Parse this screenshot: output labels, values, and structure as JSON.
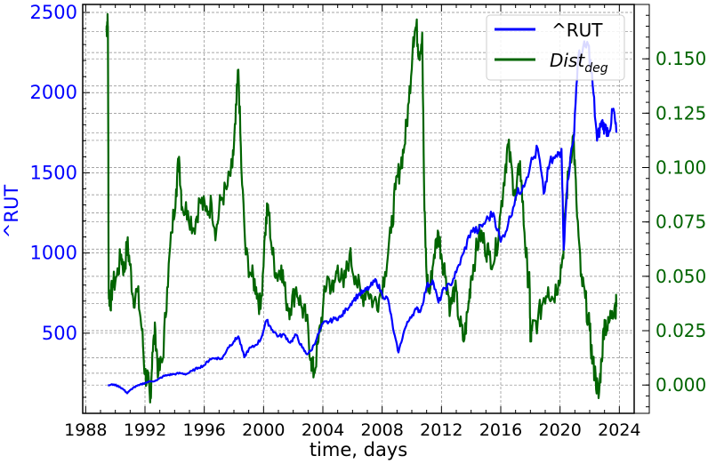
{
  "chart_data": {
    "type": "line",
    "xlabel": "time, days",
    "ylabel_left": "^RUT",
    "ylabel_right": "",
    "x_ticks": [
      1988,
      1992,
      1996,
      2000,
      2004,
      2008,
      2012,
      2016,
      2020,
      2024
    ],
    "y_left_ticks": [
      500,
      1000,
      1500,
      2000,
      2500
    ],
    "y_right_ticks": [
      "0.000",
      "0.025",
      "0.050",
      "0.075",
      "0.100",
      "0.125",
      "0.150"
    ],
    "xlim": [
      1987.8,
      2025.0
    ],
    "ylim_left": [
      0,
      2550
    ],
    "ylim_right": [
      -0.013,
      0.175
    ],
    "grid": true,
    "legend_position": "top-right",
    "colors": {
      "left_axis": "#0000ff",
      "right_axis": "#006400",
      "grid": "#888888"
    },
    "series": [
      {
        "name": "^RUT",
        "axis": "left",
        "color": "#0000ff",
        "points": [
          [
            1989.5,
            175
          ],
          [
            1989.9,
            180
          ],
          [
            1990.3,
            165
          ],
          [
            1990.6,
            145
          ],
          [
            1990.8,
            125
          ],
          [
            1991.2,
            160
          ],
          [
            1991.6,
            175
          ],
          [
            1992.0,
            190
          ],
          [
            1992.4,
            200
          ],
          [
            1992.8,
            205
          ],
          [
            1993.2,
            230
          ],
          [
            1993.6,
            240
          ],
          [
            1994.0,
            245
          ],
          [
            1994.4,
            250
          ],
          [
            1994.8,
            245
          ],
          [
            1995.2,
            265
          ],
          [
            1995.6,
            285
          ],
          [
            1996.0,
            300
          ],
          [
            1996.4,
            340
          ],
          [
            1996.8,
            345
          ],
          [
            1997.2,
            340
          ],
          [
            1997.6,
            410
          ],
          [
            1998.0,
            450
          ],
          [
            1998.3,
            480
          ],
          [
            1998.7,
            350
          ],
          [
            1999.0,
            400
          ],
          [
            1999.4,
            420
          ],
          [
            1999.8,
            460
          ],
          [
            2000.2,
            580
          ],
          [
            2000.6,
            520
          ],
          [
            2001.0,
            480
          ],
          [
            2001.4,
            490
          ],
          [
            2001.8,
            440
          ],
          [
            2002.2,
            490
          ],
          [
            2002.6,
            410
          ],
          [
            2002.9,
            370
          ],
          [
            2003.2,
            390
          ],
          [
            2003.6,
            470
          ],
          [
            2004.0,
            560
          ],
          [
            2004.4,
            570
          ],
          [
            2004.8,
            590
          ],
          [
            2005.2,
            600
          ],
          [
            2005.6,
            650
          ],
          [
            2006.0,
            700
          ],
          [
            2006.4,
            740
          ],
          [
            2006.8,
            760
          ],
          [
            2007.2,
            790
          ],
          [
            2007.6,
            830
          ],
          [
            2008.0,
            740
          ],
          [
            2008.4,
            710
          ],
          [
            2008.8,
            500
          ],
          [
            2009.1,
            380
          ],
          [
            2009.5,
            520
          ],
          [
            2009.9,
            600
          ],
          [
            2010.3,
            650
          ],
          [
            2010.6,
            640
          ],
          [
            2011.0,
            790
          ],
          [
            2011.4,
            830
          ],
          [
            2011.8,
            690
          ],
          [
            2012.2,
            780
          ],
          [
            2012.6,
            800
          ],
          [
            2013.0,
            880
          ],
          [
            2013.5,
            1000
          ],
          [
            2014.0,
            1140
          ],
          [
            2014.5,
            1140
          ],
          [
            2015.0,
            1200
          ],
          [
            2015.5,
            1250
          ],
          [
            2016.0,
            1070
          ],
          [
            2016.5,
            1180
          ],
          [
            2017.0,
            1350
          ],
          [
            2017.5,
            1420
          ],
          [
            2018.0,
            1550
          ],
          [
            2018.5,
            1650
          ],
          [
            2018.9,
            1370
          ],
          [
            2019.3,
            1560
          ],
          [
            2019.8,
            1600
          ],
          [
            2020.1,
            1650
          ],
          [
            2020.25,
            1020
          ],
          [
            2020.5,
            1450
          ],
          [
            2020.9,
            1700
          ],
          [
            2021.2,
            2200
          ],
          [
            2021.5,
            2250
          ],
          [
            2021.9,
            2300
          ],
          [
            2022.2,
            2050
          ],
          [
            2022.5,
            1700
          ],
          [
            2022.8,
            1820
          ],
          [
            2023.0,
            1780
          ],
          [
            2023.3,
            1760
          ],
          [
            2023.6,
            1900
          ],
          [
            2023.8,
            1750
          ]
        ]
      },
      {
        "name": "Dist_deg",
        "axis": "right",
        "color": "#006400",
        "points": [
          [
            1989.4,
            0.163
          ],
          [
            1989.45,
            0.167
          ],
          [
            1989.5,
            0.165
          ],
          [
            1989.55,
            0.044
          ],
          [
            1989.65,
            0.037
          ],
          [
            1989.8,
            0.045
          ],
          [
            1990.1,
            0.05
          ],
          [
            1990.4,
            0.06
          ],
          [
            1990.6,
            0.052
          ],
          [
            1990.8,
            0.065
          ],
          [
            1991.0,
            0.055
          ],
          [
            1991.2,
            0.04
          ],
          [
            1991.5,
            0.043
          ],
          [
            1991.8,
            0.025
          ],
          [
            1992.0,
            0.005
          ],
          [
            1992.2,
            0.002
          ],
          [
            1992.35,
            -0.008
          ],
          [
            1992.5,
            0.015
          ],
          [
            1992.7,
            0.025
          ],
          [
            1992.9,
            0.005
          ],
          [
            1993.2,
            0.012
          ],
          [
            1993.5,
            0.045
          ],
          [
            1993.8,
            0.07
          ],
          [
            1994.1,
            0.09
          ],
          [
            1994.3,
            0.105
          ],
          [
            1994.5,
            0.082
          ],
          [
            1994.9,
            0.08
          ],
          [
            1995.3,
            0.072
          ],
          [
            1995.7,
            0.085
          ],
          [
            1996.1,
            0.08
          ],
          [
            1996.5,
            0.083
          ],
          [
            1996.8,
            0.07
          ],
          [
            1997.1,
            0.085
          ],
          [
            1997.5,
            0.09
          ],
          [
            1997.9,
            0.1
          ],
          [
            1998.1,
            0.12
          ],
          [
            1998.3,
            0.145
          ],
          [
            1998.5,
            0.1
          ],
          [
            1998.8,
            0.06
          ],
          [
            1999.2,
            0.05
          ],
          [
            1999.5,
            0.045
          ],
          [
            1999.8,
            0.035
          ],
          [
            2000.1,
            0.07
          ],
          [
            2000.3,
            0.083
          ],
          [
            2000.6,
            0.06
          ],
          [
            2000.9,
            0.05
          ],
          [
            2001.2,
            0.055
          ],
          [
            2001.5,
            0.04
          ],
          [
            2001.8,
            0.035
          ],
          [
            2002.2,
            0.045
          ],
          [
            2002.6,
            0.035
          ],
          [
            2002.9,
            0.03
          ],
          [
            2003.2,
            0.012
          ],
          [
            2003.4,
            0.005
          ],
          [
            2003.7,
            0.02
          ],
          [
            2004.0,
            0.035
          ],
          [
            2004.3,
            0.05
          ],
          [
            2004.7,
            0.043
          ],
          [
            2005.0,
            0.055
          ],
          [
            2005.4,
            0.045
          ],
          [
            2005.8,
            0.06
          ],
          [
            2006.2,
            0.05
          ],
          [
            2006.6,
            0.04
          ],
          [
            2007.0,
            0.045
          ],
          [
            2007.4,
            0.038
          ],
          [
            2007.8,
            0.04
          ],
          [
            2008.2,
            0.052
          ],
          [
            2008.6,
            0.07
          ],
          [
            2008.9,
            0.09
          ],
          [
            2009.2,
            0.1
          ],
          [
            2009.5,
            0.11
          ],
          [
            2009.8,
            0.13
          ],
          [
            2010.1,
            0.16
          ],
          [
            2010.3,
            0.165
          ],
          [
            2010.5,
            0.152
          ],
          [
            2010.7,
            0.162
          ],
          [
            2010.85,
            0.08
          ],
          [
            2011.0,
            0.05
          ],
          [
            2011.2,
            0.042
          ],
          [
            2011.5,
            0.06
          ],
          [
            2011.8,
            0.07
          ],
          [
            2012.0,
            0.06
          ],
          [
            2012.3,
            0.05
          ],
          [
            2012.6,
            0.035
          ],
          [
            2012.9,
            0.045
          ],
          [
            2013.2,
            0.03
          ],
          [
            2013.5,
            0.02
          ],
          [
            2013.8,
            0.035
          ],
          [
            2014.0,
            0.05
          ],
          [
            2014.3,
            0.06
          ],
          [
            2014.6,
            0.07
          ],
          [
            2014.9,
            0.065
          ],
          [
            2015.2,
            0.06
          ],
          [
            2015.6,
            0.058
          ],
          [
            2016.0,
            0.08
          ],
          [
            2016.3,
            0.1
          ],
          [
            2016.5,
            0.11
          ],
          [
            2016.8,
            0.095
          ],
          [
            2017.0,
            0.085
          ],
          [
            2017.3,
            0.103
          ],
          [
            2017.6,
            0.07
          ],
          [
            2017.8,
            0.052
          ],
          [
            2017.95,
            0.045
          ],
          [
            2018.0,
            0.02
          ],
          [
            2018.1,
            0.025
          ],
          [
            2018.5,
            0.03
          ],
          [
            2018.9,
            0.04
          ],
          [
            2019.2,
            0.045
          ],
          [
            2019.5,
            0.04
          ],
          [
            2019.9,
            0.048
          ],
          [
            2020.2,
            0.06
          ],
          [
            2020.35,
            0.08
          ],
          [
            2020.6,
            0.1
          ],
          [
            2020.9,
            0.115
          ],
          [
            2021.1,
            0.085
          ],
          [
            2021.4,
            0.05
          ],
          [
            2021.7,
            0.04
          ],
          [
            2022.0,
            0.025
          ],
          [
            2022.2,
            0.01
          ],
          [
            2022.4,
            0.004
          ],
          [
            2022.6,
            -0.006
          ],
          [
            2022.8,
            0.012
          ],
          [
            2023.0,
            0.03
          ],
          [
            2023.2,
            0.025
          ],
          [
            2023.5,
            0.034
          ],
          [
            2023.7,
            0.037
          ],
          [
            2023.8,
            0.036
          ]
        ]
      }
    ]
  },
  "legend": [
    {
      "label": "^RUT",
      "base": "",
      "sub": ""
    },
    {
      "label": "",
      "base": "Dist",
      "sub": "deg"
    }
  ]
}
